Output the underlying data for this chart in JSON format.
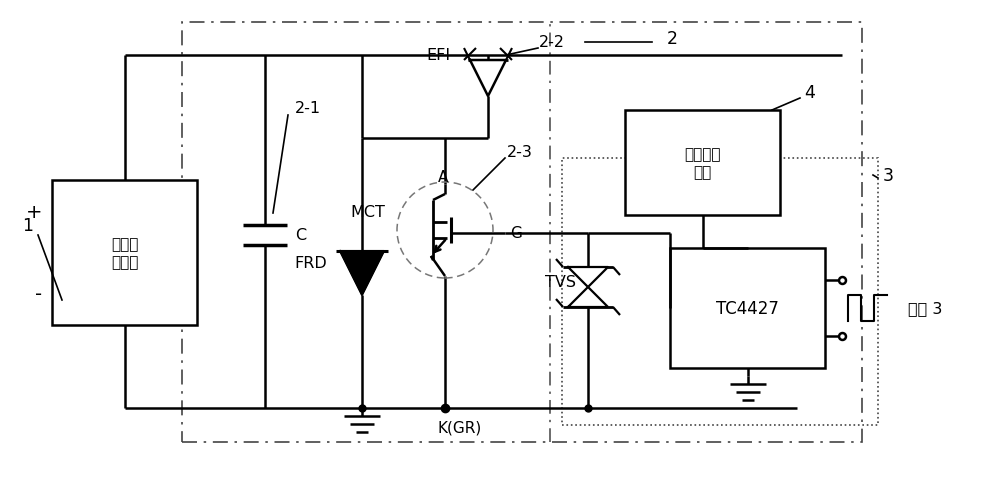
{
  "bg_color": "#ffffff",
  "line_color": "#000000",
  "box1_label": "脉冲高\n压电源",
  "box2_label": "直流恒压\n电源",
  "box3_label": "TC4427",
  "label_1": "1",
  "label_2": "2",
  "label_21": "2-1",
  "label_22": "2-2",
  "label_23": "2-3",
  "label_3": "3",
  "label_4": "4",
  "label_C": "C",
  "label_EFI": "EFI",
  "label_FRD": "FRD",
  "label_MCT": "MCT",
  "label_A": "A",
  "label_G": "G",
  "label_TVS": "TVS",
  "label_KGR": "K(GR)",
  "label_pulse3": "脉冲 3",
  "label_plus": "+",
  "label_minus": "-"
}
